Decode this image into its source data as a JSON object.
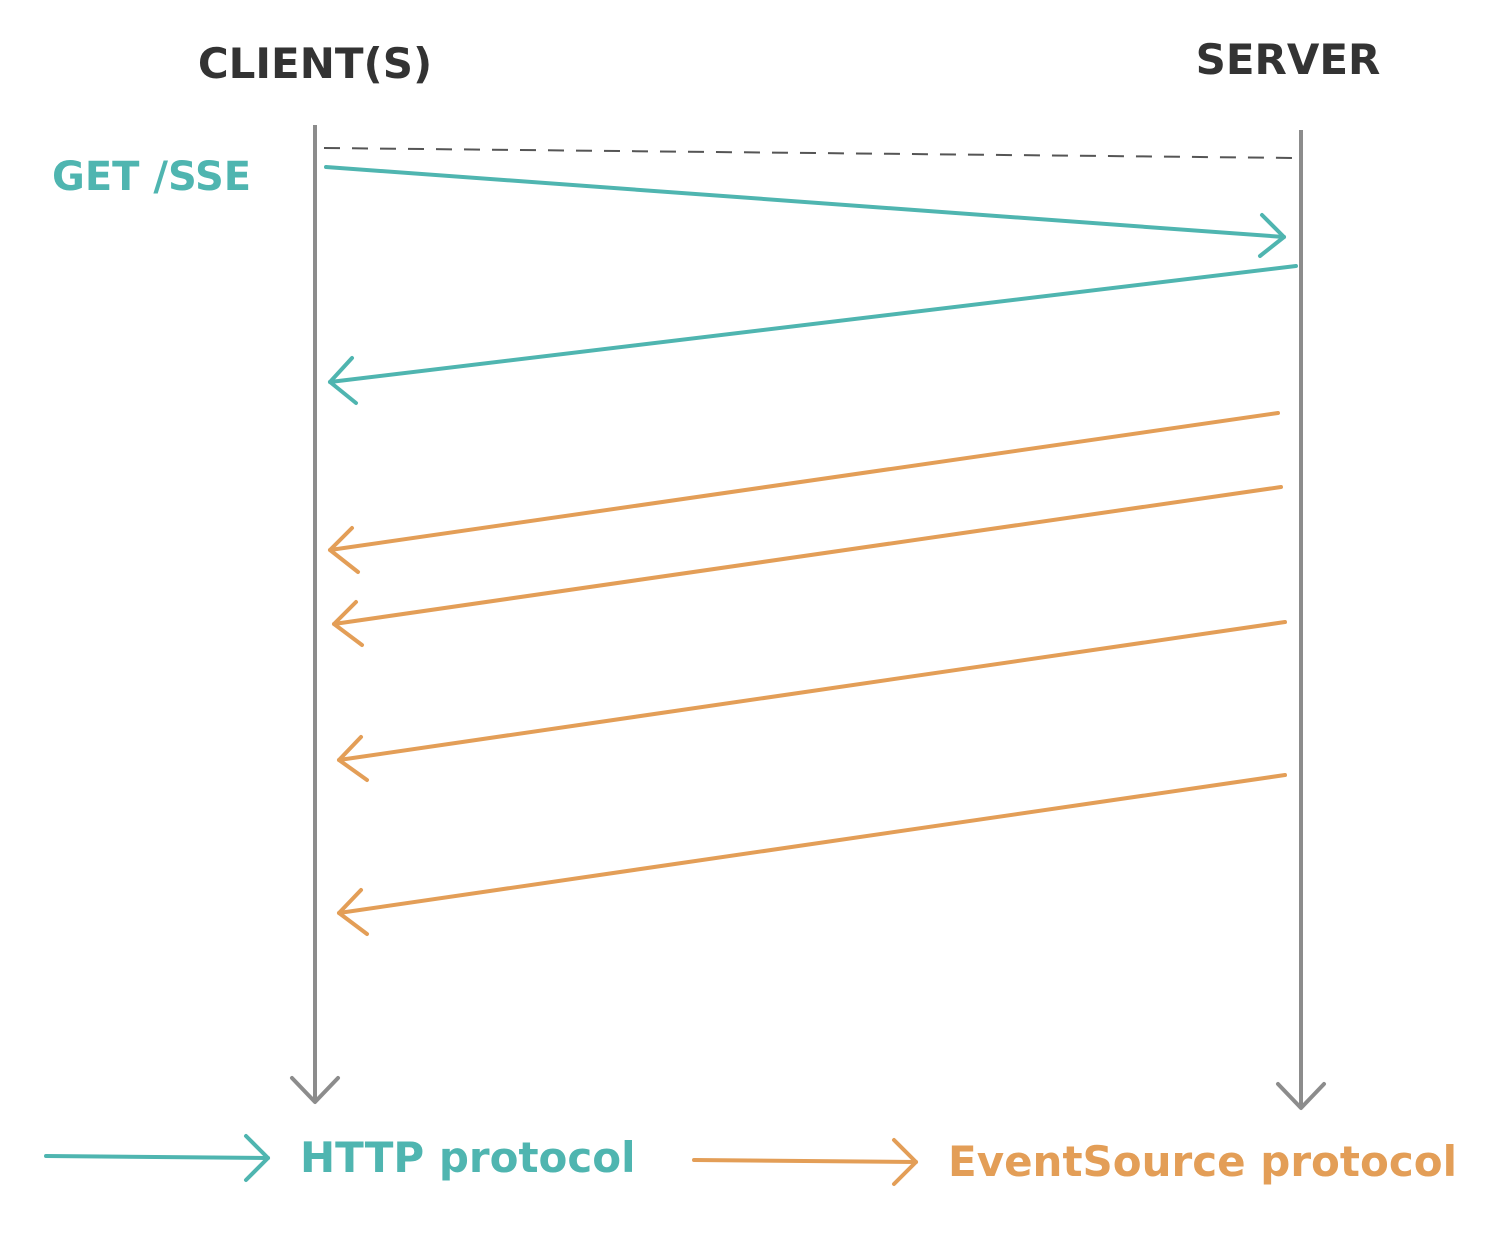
{
  "actors": {
    "client": "CLIENT(S)",
    "server": "SERVER"
  },
  "request_label": "GET /SSE",
  "legend": {
    "http": "HTTP protocol",
    "eventsource": "EventSource protocol"
  },
  "colors": {
    "http": "#4fb5b0",
    "eventsource": "#e39e57",
    "lifeline": "#8c8c8c",
    "actor_text": "#333333",
    "dashed": "#555555"
  }
}
